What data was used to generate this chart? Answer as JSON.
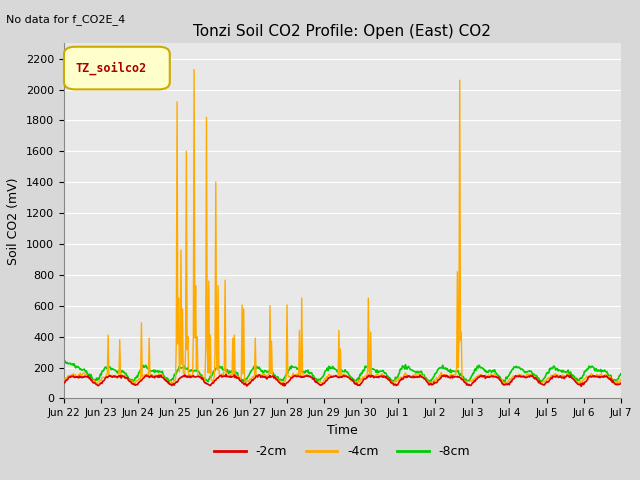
{
  "title": "Tonzi Soil CO2 Profile: Open (East) CO2",
  "subtitle": "No data for f_CO2E_4",
  "ylabel": "Soil CO2 (mV)",
  "xlabel": "Time",
  "legend_label": "TZ_soilco2",
  "ylim": [
    0,
    2300
  ],
  "yticks": [
    0,
    200,
    400,
    600,
    800,
    1000,
    1200,
    1400,
    1600,
    1800,
    2000,
    2200
  ],
  "line_colors": {
    "2cm": "#dd0000",
    "4cm": "#ffaa00",
    "8cm": "#00cc00"
  },
  "legend_entries": [
    "-2cm",
    "-4cm",
    "-8cm"
  ],
  "bg_color": "#e8e8e8",
  "grid_color": "#ffffff",
  "n_points": 720,
  "x_start": 0,
  "x_end": 15,
  "xtick_positions": [
    0,
    1,
    2,
    3,
    4,
    5,
    6,
    7,
    8,
    9,
    10,
    11,
    12,
    13,
    14,
    15
  ],
  "xtick_labels": [
    "Jun 22",
    "Jun 23",
    "Jun 24",
    "Jun 25",
    "Jun 26",
    "Jun 27",
    "Jun 28",
    "Jun 29",
    "Jun 30",
    "Jul 1",
    "Jul 2",
    "Jul 3",
    "Jul 4",
    "Jul 5",
    "Jul 6",
    "Jul 7"
  ],
  "spike_4cm": [
    [
      1.2,
      410
    ],
    [
      1.5,
      380
    ],
    [
      2.1,
      490
    ],
    [
      2.3,
      390
    ],
    [
      3.05,
      1920
    ],
    [
      3.1,
      650
    ],
    [
      3.15,
      960
    ],
    [
      3.2,
      580
    ],
    [
      3.3,
      1600
    ],
    [
      3.35,
      400
    ],
    [
      3.5,
      2130
    ],
    [
      3.55,
      730
    ],
    [
      3.6,
      400
    ],
    [
      3.85,
      1820
    ],
    [
      3.9,
      760
    ],
    [
      3.95,
      410
    ],
    [
      4.1,
      1400
    ],
    [
      4.15,
      730
    ],
    [
      4.35,
      765
    ],
    [
      4.55,
      390
    ],
    [
      4.6,
      410
    ],
    [
      4.8,
      605
    ],
    [
      4.85,
      580
    ],
    [
      5.15,
      390
    ],
    [
      5.55,
      600
    ],
    [
      5.6,
      370
    ],
    [
      6.0,
      605
    ],
    [
      6.35,
      440
    ],
    [
      6.4,
      650
    ],
    [
      7.4,
      440
    ],
    [
      7.45,
      320
    ],
    [
      8.2,
      650
    ],
    [
      8.25,
      430
    ],
    [
      10.6,
      820
    ],
    [
      10.65,
      2060
    ],
    [
      10.7,
      430
    ]
  ]
}
